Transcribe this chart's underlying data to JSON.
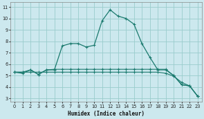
{
  "xlabel": "Humidex (Indice chaleur)",
  "bg_color": "#cce8ee",
  "grid_color": "#99cccc",
  "line_color": "#1a7a6e",
  "xlim": [
    -0.5,
    23.5
  ],
  "ylim": [
    2.7,
    11.4
  ],
  "xtick_labels": [
    "0",
    "1",
    "2",
    "3",
    "4",
    "5",
    "6",
    "7",
    "8",
    "9",
    "10",
    "11",
    "12",
    "13",
    "14",
    "15",
    "16",
    "17",
    "18",
    "19",
    "20",
    "21",
    "22",
    "23"
  ],
  "xticks": [
    0,
    1,
    2,
    3,
    4,
    5,
    6,
    7,
    8,
    9,
    10,
    11,
    12,
    13,
    14,
    15,
    16,
    17,
    18,
    19,
    20,
    21,
    22,
    23
  ],
  "yticks": [
    3,
    4,
    5,
    6,
    7,
    8,
    9,
    10,
    11
  ],
  "s1_x": [
    0,
    1,
    2,
    3,
    4,
    5,
    6,
    7,
    8,
    9,
    10,
    11,
    12,
    13,
    14,
    15,
    16,
    17,
    18,
    19,
    20,
    21,
    22,
    23
  ],
  "s1_y": [
    5.3,
    5.2,
    5.5,
    5.1,
    5.5,
    5.5,
    7.6,
    7.8,
    7.8,
    7.5,
    7.65,
    9.8,
    10.75,
    10.2,
    10.0,
    9.5,
    7.8,
    6.6,
    5.5,
    5.5,
    5.0,
    4.2,
    4.1,
    3.2
  ],
  "s2_x": [
    0,
    1,
    2,
    3,
    4,
    5,
    6,
    7,
    8,
    9,
    10,
    11,
    12,
    13,
    14,
    15,
    16,
    17,
    18,
    19,
    20,
    21,
    22,
    23
  ],
  "s2_y": [
    5.3,
    5.3,
    5.5,
    5.1,
    5.5,
    5.55,
    5.55,
    5.55,
    5.55,
    5.55,
    5.55,
    5.55,
    5.55,
    5.55,
    5.55,
    5.55,
    5.55,
    5.55,
    5.55,
    5.55,
    5.0,
    4.2,
    4.1,
    3.2
  ],
  "s3_x": [
    0,
    1,
    2,
    3,
    4,
    5,
    6,
    7,
    8,
    9,
    10,
    11,
    12,
    13,
    14,
    15,
    16,
    17,
    18,
    19,
    20,
    21,
    22,
    23
  ],
  "s3_y": [
    5.3,
    5.3,
    5.3,
    5.3,
    5.3,
    5.3,
    5.3,
    5.3,
    5.3,
    5.3,
    5.3,
    5.3,
    5.3,
    5.3,
    5.3,
    5.3,
    5.3,
    5.3,
    5.3,
    5.2,
    4.95,
    4.4,
    4.1,
    3.2
  ]
}
